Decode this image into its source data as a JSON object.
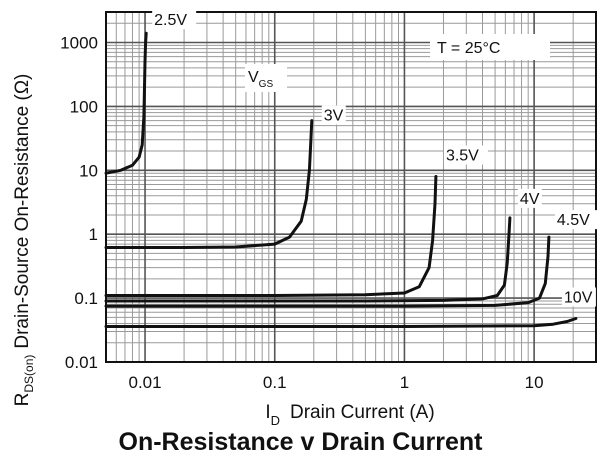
{
  "chart_data": {
    "type": "line",
    "title": "On-Resistance v Drain Current",
    "xlabel": {
      "symbol": "I",
      "subscript": "D",
      "text": "Drain Current (A)"
    },
    "ylabel": {
      "symbol": "R",
      "subscript": "DS(on)",
      "text": "Drain-Source On-Resistance (Ω)"
    },
    "x_scale": "log",
    "y_scale": "log",
    "xlim": [
      0.005,
      30
    ],
    "ylim": [
      0.01,
      3000
    ],
    "grid": true,
    "x_ticks": [
      {
        "value": 0.01,
        "label": "0.01"
      },
      {
        "value": 0.1,
        "label": "0.1"
      },
      {
        "value": 1,
        "label": "1"
      },
      {
        "value": 10,
        "label": "10"
      }
    ],
    "y_ticks": [
      {
        "value": 0.01,
        "label": "0.01"
      },
      {
        "value": 0.1,
        "label": "0.1"
      },
      {
        "value": 1,
        "label": "1"
      },
      {
        "value": 10,
        "label": "10"
      },
      {
        "value": 100,
        "label": "100"
      },
      {
        "value": 1000,
        "label": "1000"
      }
    ],
    "annotations": [
      {
        "text": "T = 25°C"
      },
      {
        "text": "V",
        "subscript": "GS"
      }
    ],
    "series": [
      {
        "name": "2.5V",
        "x": [
          0.005,
          0.0065,
          0.008,
          0.009,
          0.0095,
          0.0098,
          0.0099,
          0.01,
          0.0101,
          0.0102
        ],
        "y": [
          9,
          10,
          12,
          16,
          25,
          70,
          200,
          500,
          1000,
          1400
        ]
      },
      {
        "name": "3V",
        "x": [
          0.005,
          0.02,
          0.05,
          0.1,
          0.13,
          0.16,
          0.175,
          0.185,
          0.19,
          0.193
        ],
        "y": [
          0.62,
          0.62,
          0.63,
          0.7,
          0.9,
          1.6,
          3.5,
          10,
          30,
          60
        ]
      },
      {
        "name": "3.5V",
        "x": [
          0.005,
          0.1,
          0.5,
          1,
          1.3,
          1.55,
          1.65,
          1.72,
          1.75
        ],
        "y": [
          0.11,
          0.11,
          0.113,
          0.12,
          0.15,
          0.3,
          0.8,
          3,
          8
        ]
      },
      {
        "name": "4V",
        "x": [
          0.005,
          0.5,
          2,
          4,
          5.2,
          5.9,
          6.2,
          6.4,
          6.5
        ],
        "y": [
          0.09,
          0.09,
          0.092,
          0.097,
          0.11,
          0.16,
          0.35,
          1,
          1.8
        ]
      },
      {
        "name": "4.5V",
        "x": [
          0.005,
          1,
          5,
          9,
          11,
          12.2,
          12.8,
          13
        ],
        "y": [
          0.075,
          0.075,
          0.077,
          0.085,
          0.1,
          0.17,
          0.45,
          0.9
        ]
      },
      {
        "name": "10V",
        "x": [
          0.005,
          1,
          10,
          14,
          18,
          21
        ],
        "y": [
          0.036,
          0.036,
          0.037,
          0.039,
          0.043,
          0.048
        ]
      }
    ]
  }
}
